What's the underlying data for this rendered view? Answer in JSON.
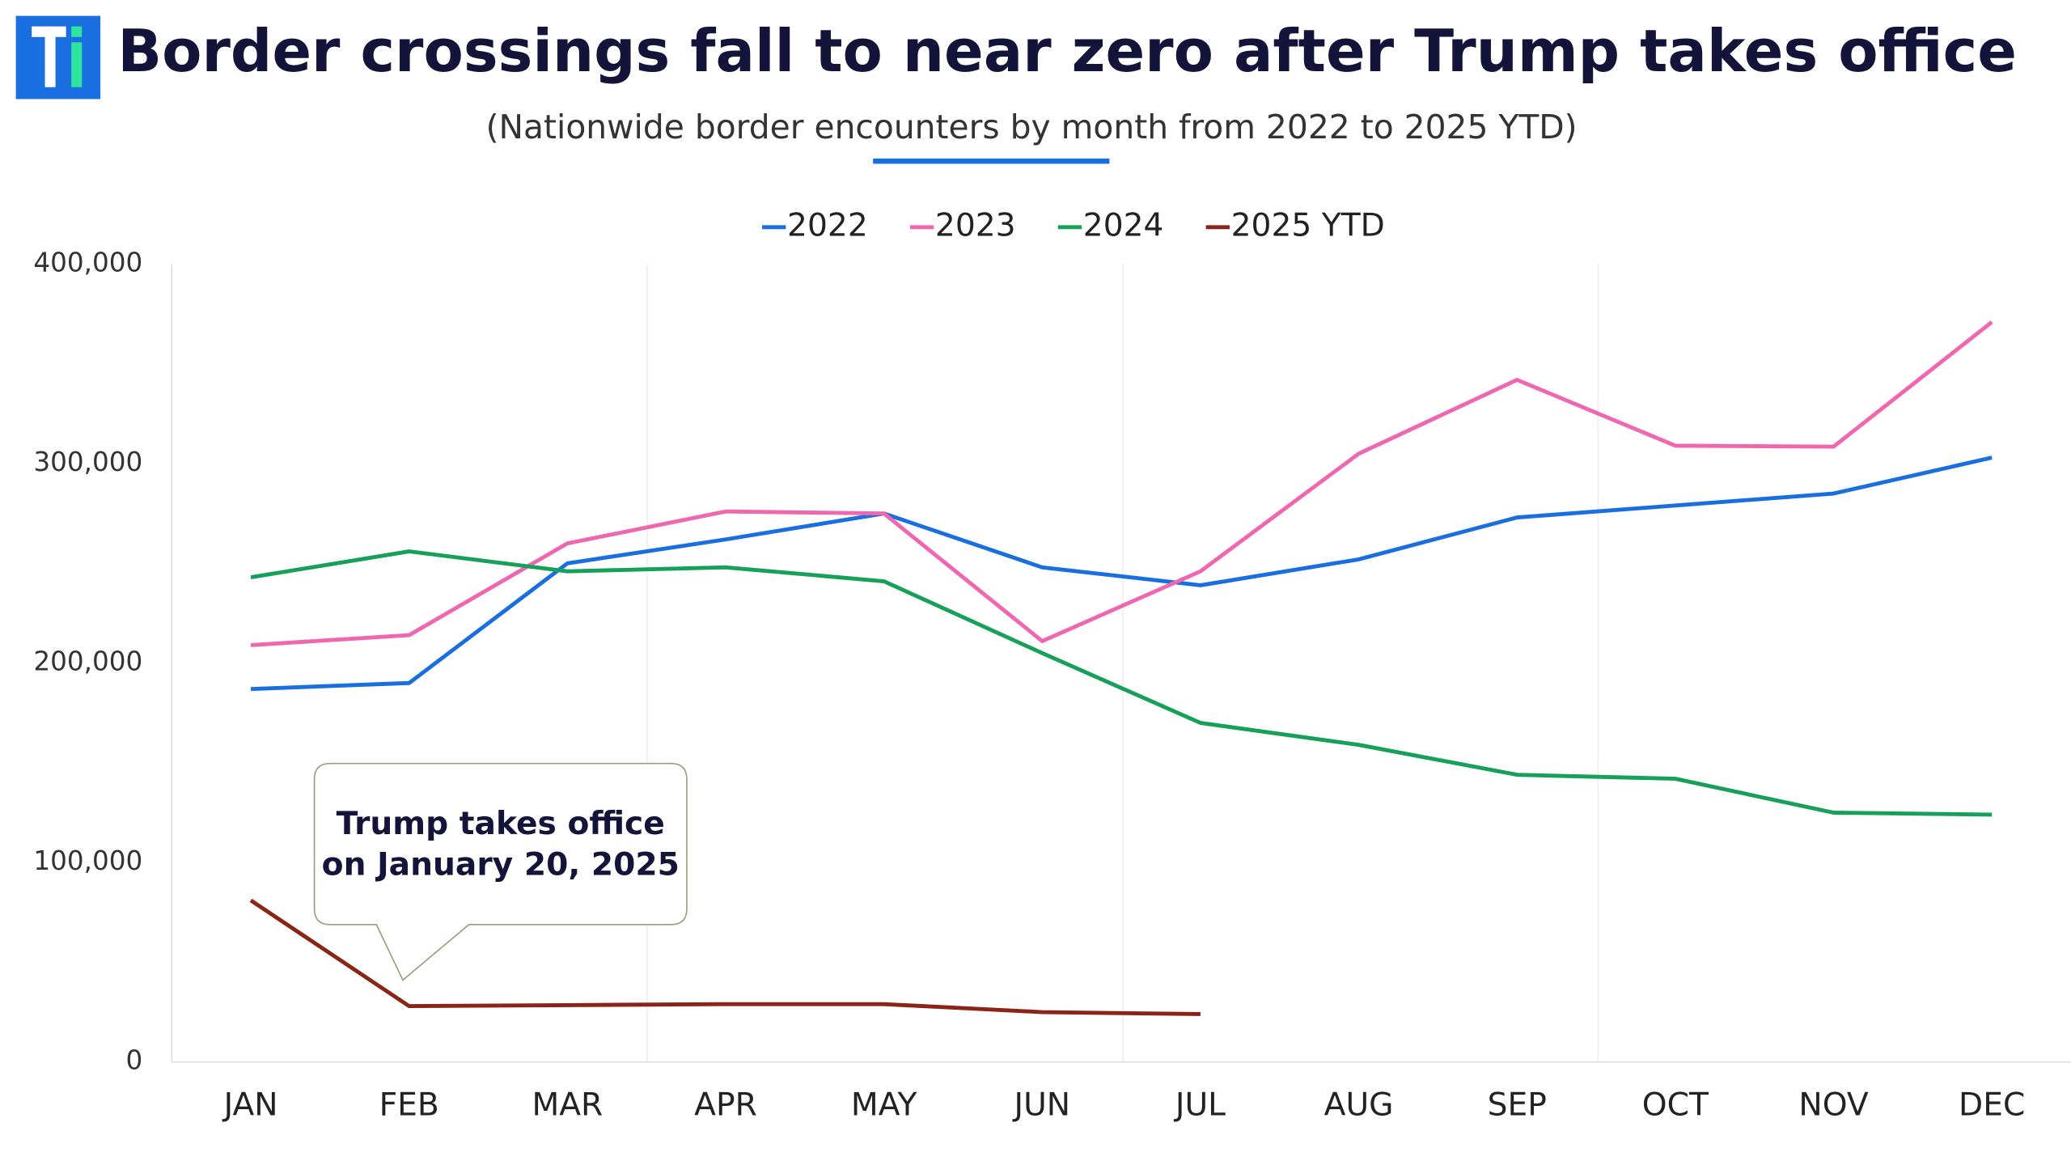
{
  "chart_data": {
    "type": "line",
    "title": "Border crossings fall to near zero after Trump takes office",
    "subtitle": "(Nationwide border encounters by month from 2022 to 2025 YTD)",
    "annotation": [
      "Trump takes office",
      "on January 20, 2025"
    ],
    "categories": [
      "JAN",
      "FEB",
      "MAR",
      "APR",
      "MAY",
      "JUN",
      "JUL",
      "AUG",
      "SEP",
      "OCT",
      "NOV",
      "DEC"
    ],
    "series": [
      {
        "name": "2022",
        "color": "#1a6fe0",
        "values": [
          187000,
          190000,
          250000,
          262000,
          275000,
          248000,
          239000,
          252000,
          273000,
          279000,
          285000,
          303000
        ]
      },
      {
        "name": "2023",
        "color": "#ef67b0",
        "values": [
          209000,
          214000,
          260000,
          276000,
          275000,
          211000,
          246000,
          305000,
          342000,
          309000,
          308500,
          371000
        ]
      },
      {
        "name": "2024",
        "color": "#16a05a",
        "values": [
          243000,
          256000,
          246000,
          248000,
          241000,
          205000,
          170000,
          159000,
          144000,
          142000,
          125000,
          124000
        ]
      },
      {
        "name": "2025 YTD",
        "color": "#8b2316",
        "values": [
          81000,
          28000,
          28500,
          29000,
          29000,
          25000,
          24000,
          null,
          null,
          null,
          null,
          null
        ]
      }
    ],
    "ylim": [
      0,
      400000
    ],
    "yticks": [
      0,
      {
        "value": 100000,
        "label": "100,000"
      },
      {
        "value": 200000,
        "label": "200,000"
      },
      {
        "value": 300000,
        "label": "300,000"
      },
      {
        "value": 400000,
        "label": "400,000"
      }
    ],
    "legend": "top"
  }
}
